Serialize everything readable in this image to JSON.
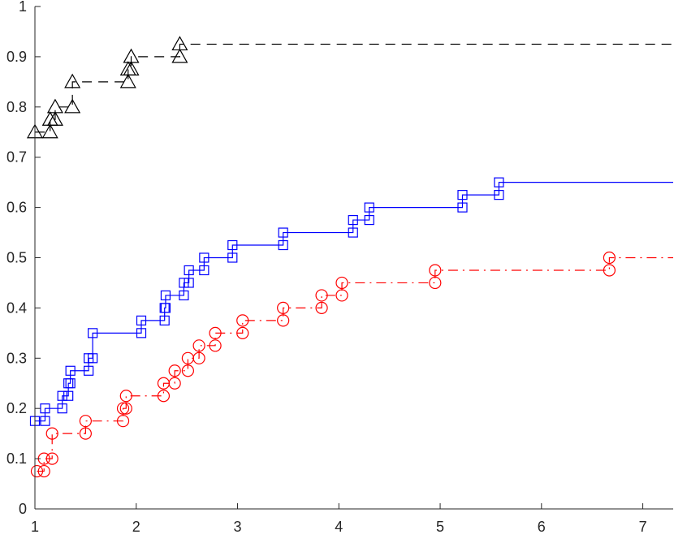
{
  "chart_data": {
    "type": "line",
    "title": "",
    "xlabel": "",
    "ylabel": "",
    "xlim": [
      1,
      7.3
    ],
    "ylim": [
      0,
      1
    ],
    "grid": false,
    "x_ticks": [
      1,
      2,
      3,
      4,
      5,
      6,
      7
    ],
    "y_ticks": [
      0,
      0.1,
      0.2,
      0.3,
      0.4,
      0.5,
      0.6,
      0.7,
      0.8,
      0.9,
      1
    ],
    "x_tick_labels": [
      "1",
      "2",
      "3",
      "4",
      "5",
      "6",
      "7"
    ],
    "y_tick_labels": [
      "0",
      "0.1",
      "0.2",
      "0.3",
      "0.4",
      "0.5",
      "0.6",
      "0.7",
      "0.8",
      "0.9",
      "1"
    ],
    "series": [
      {
        "style": "step",
        "line": "dashed",
        "marker": "triangle",
        "color": "#000000",
        "x": [
          1.0,
          1.15,
          1.2,
          1.37,
          1.92,
          1.95,
          2.43
        ],
        "y": [
          0.75,
          0.775,
          0.8,
          0.85,
          0.875,
          0.9,
          0.925
        ],
        "x_end": 7.3
      },
      {
        "style": "step",
        "line": "solid",
        "marker": "square",
        "color": "#0000ff",
        "x": [
          1.0,
          1.1,
          1.27,
          1.33,
          1.35,
          1.53,
          1.57,
          2.05,
          2.28,
          2.29,
          2.47,
          2.52,
          2.67,
          2.95,
          3.45,
          4.14,
          4.3,
          5.22,
          5.58
        ],
        "y": [
          0.175,
          0.2,
          0.225,
          0.25,
          0.275,
          0.3,
          0.35,
          0.375,
          0.4,
          0.425,
          0.45,
          0.475,
          0.5,
          0.525,
          0.55,
          0.575,
          0.6,
          0.625,
          0.65
        ],
        "x_end": 7.3
      },
      {
        "style": "step",
        "line": "dashdot",
        "marker": "circle",
        "color": "#ff0000",
        "x": [
          1.02,
          1.09,
          1.17,
          1.5,
          1.87,
          1.9,
          2.27,
          2.38,
          2.51,
          2.62,
          2.78,
          3.05,
          3.45,
          3.83,
          4.03,
          4.95,
          6.67
        ],
        "y": [
          0.075,
          0.1,
          0.15,
          0.175,
          0.2,
          0.225,
          0.25,
          0.275,
          0.3,
          0.325,
          0.35,
          0.375,
          0.4,
          0.425,
          0.45,
          0.475,
          0.5
        ],
        "x_end": 7.3
      }
    ]
  }
}
